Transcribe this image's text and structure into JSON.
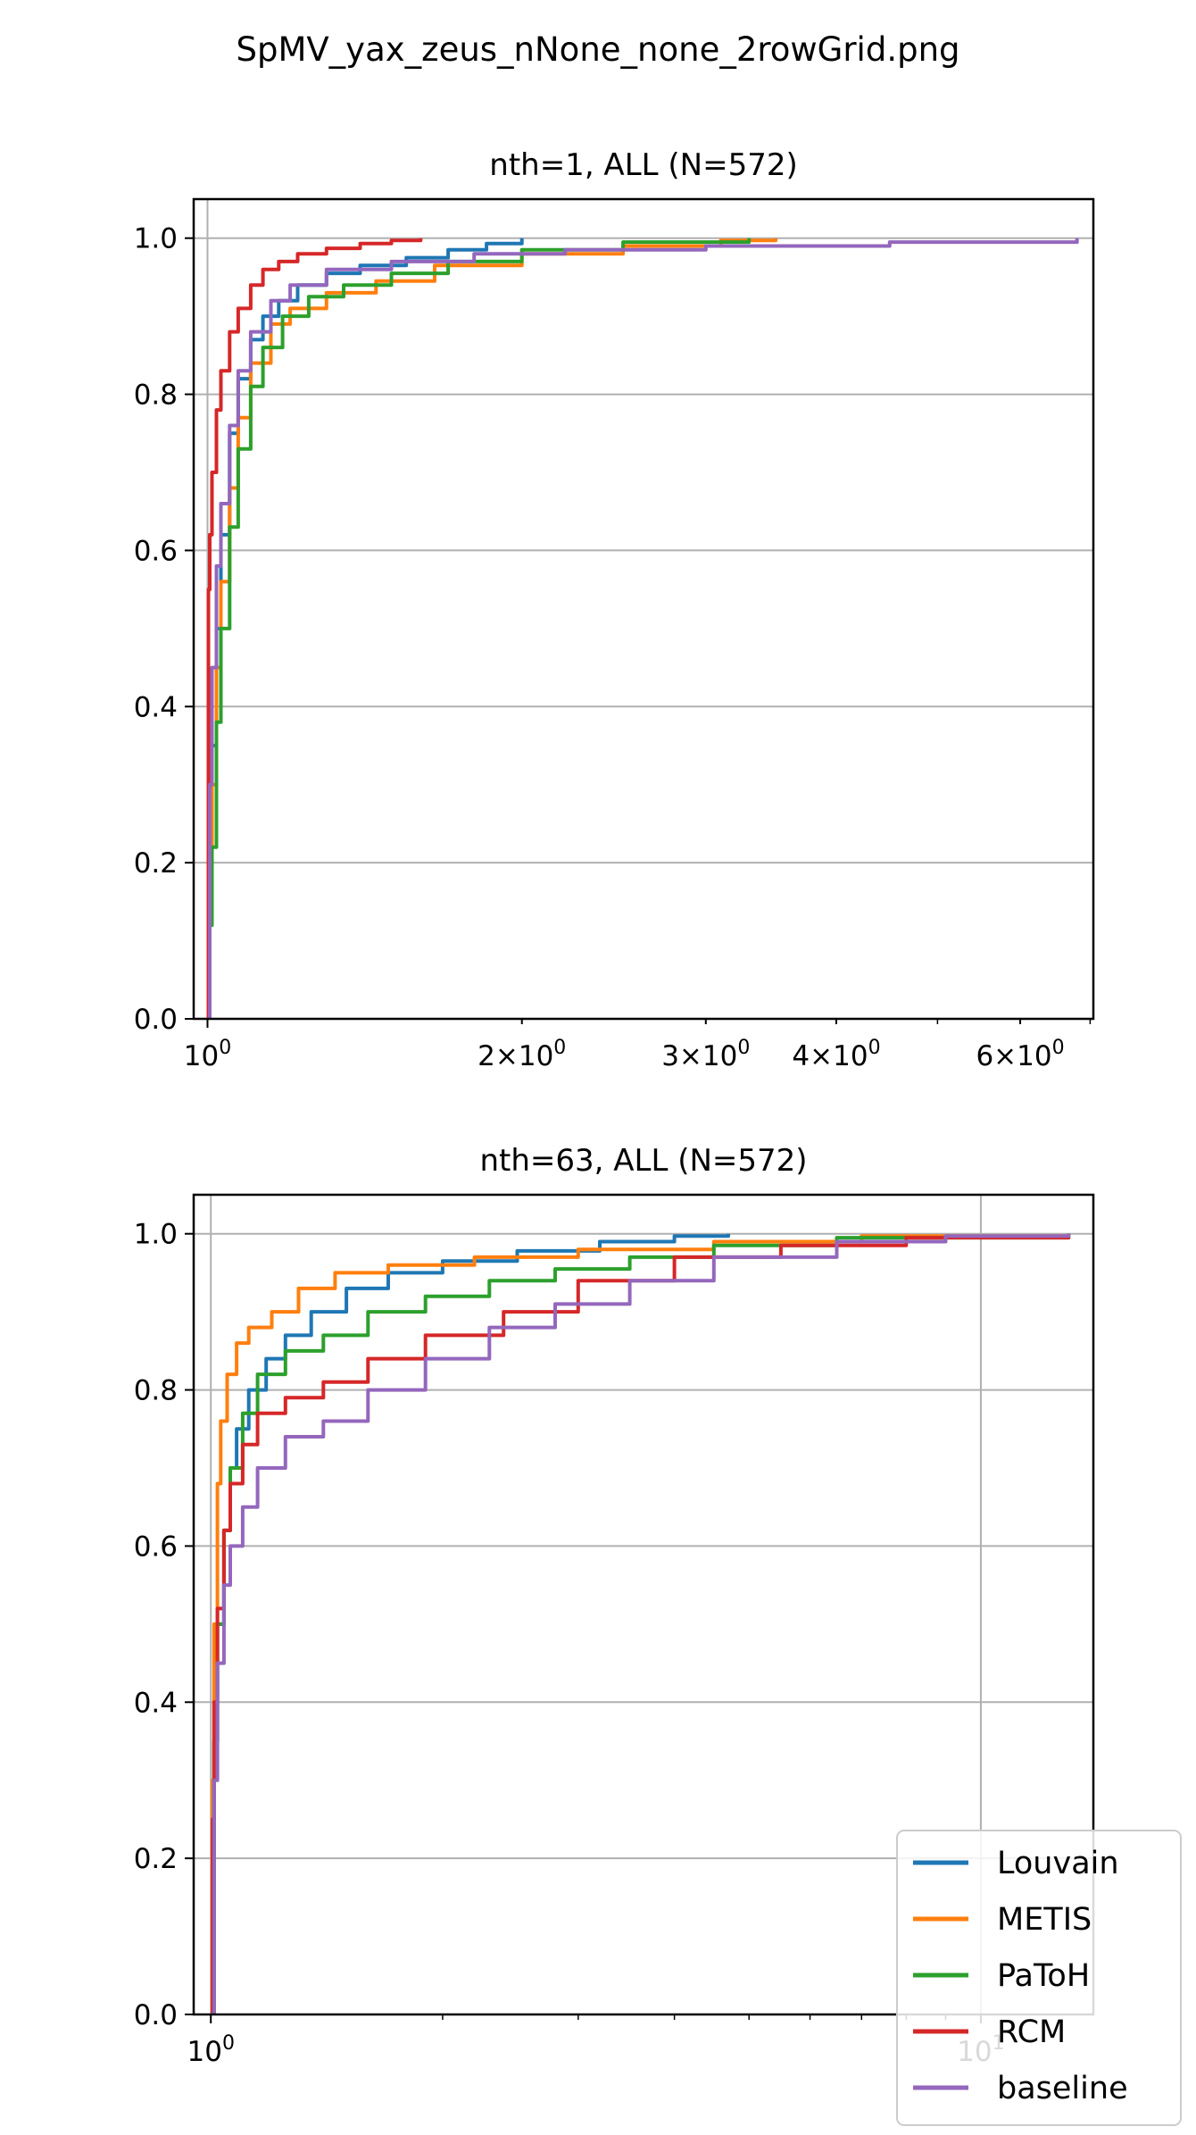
{
  "figure": {
    "suptitle": "SpMV_yax_zeus_nNone_none_2rowGrid.png"
  },
  "legend": {
    "entries": [
      "Louvain",
      "METIS",
      "PaToH",
      "RCM",
      "baseline"
    ],
    "placement": "lower-right"
  },
  "colors": {
    "Louvain": "#1f77b4",
    "METIS": "#ff7f0e",
    "PaToH": "#2ca02c",
    "RCM": "#d62728",
    "baseline": "#9467bd"
  },
  "chart_data": [
    {
      "type": "line",
      "title": "nth=1, ALL (N=572)",
      "xlabel": "",
      "ylabel": "",
      "xscale": "log",
      "xlim": [
        0.97,
        7.05
      ],
      "ylim": [
        -0.0,
        1.05
      ],
      "grid": true,
      "xticks": [
        1,
        2,
        3,
        4,
        6
      ],
      "xtick_labels": [
        {
          "base": "10",
          "exp": "0"
        },
        {
          "pre": "2",
          "base": "10",
          "exp": "0"
        },
        {
          "pre": "3",
          "base": "10",
          "exp": "0"
        },
        {
          "pre": "4",
          "base": "10",
          "exp": "0"
        },
        {
          "pre": "6",
          "base": "10",
          "exp": "0"
        }
      ],
      "yticks": [
        "0.0",
        "0.2",
        "0.4",
        "0.6",
        "0.8",
        "1.0"
      ],
      "series": [
        {
          "name": "Louvain",
          "x": [
            1.0,
            1.005,
            1.01,
            1.02,
            1.03,
            1.05,
            1.07,
            1.1,
            1.13,
            1.17,
            1.22,
            1.3,
            1.4,
            1.55,
            1.7,
            1.85,
            2.0
          ],
          "y": [
            0.0,
            0.2,
            0.35,
            0.5,
            0.62,
            0.75,
            0.82,
            0.87,
            0.9,
            0.92,
            0.94,
            0.955,
            0.965,
            0.975,
            0.985,
            0.993,
            1.0
          ]
        },
        {
          "name": "METIS",
          "x": [
            1.0,
            1.005,
            1.01,
            1.02,
            1.03,
            1.05,
            1.07,
            1.1,
            1.15,
            1.2,
            1.3,
            1.45,
            1.65,
            2.0,
            2.5,
            3.1,
            3.5
          ],
          "y": [
            0.0,
            0.18,
            0.3,
            0.45,
            0.56,
            0.68,
            0.77,
            0.84,
            0.89,
            0.91,
            0.93,
            0.945,
            0.965,
            0.98,
            0.99,
            0.997,
            1.0
          ]
        },
        {
          "name": "PaToH",
          "x": [
            1.0,
            1.005,
            1.01,
            1.02,
            1.03,
            1.05,
            1.07,
            1.1,
            1.13,
            1.18,
            1.25,
            1.35,
            1.5,
            1.7,
            2.0,
            2.5,
            3.3
          ],
          "y": [
            0.0,
            0.12,
            0.22,
            0.38,
            0.5,
            0.63,
            0.73,
            0.81,
            0.86,
            0.9,
            0.925,
            0.94,
            0.955,
            0.97,
            0.985,
            0.995,
            1.0
          ]
        },
        {
          "name": "RCM",
          "x": [
            1.0,
            1.002,
            1.005,
            1.01,
            1.02,
            1.03,
            1.05,
            1.07,
            1.1,
            1.13,
            1.17,
            1.22,
            1.3,
            1.4,
            1.5,
            1.6
          ],
          "y": [
            0.0,
            0.55,
            0.62,
            0.7,
            0.78,
            0.83,
            0.88,
            0.91,
            0.94,
            0.96,
            0.97,
            0.98,
            0.987,
            0.993,
            0.997,
            1.0
          ]
        },
        {
          "name": "baseline",
          "x": [
            1.0,
            1.005,
            1.01,
            1.02,
            1.03,
            1.05,
            1.07,
            1.1,
            1.15,
            1.2,
            1.3,
            1.5,
            1.8,
            2.2,
            3.0,
            4.5,
            6.8
          ],
          "y": [
            0.0,
            0.3,
            0.45,
            0.58,
            0.66,
            0.76,
            0.83,
            0.88,
            0.92,
            0.94,
            0.96,
            0.97,
            0.98,
            0.985,
            0.99,
            0.995,
            1.0
          ]
        }
      ]
    },
    {
      "type": "line",
      "title": "nth=63, ALL (N=572)",
      "xlabel": "",
      "ylabel": "",
      "xscale": "log",
      "xlim": [
        0.95,
        14.0
      ],
      "ylim": [
        -0.0,
        1.05
      ],
      "grid": true,
      "xticks": [
        1,
        10
      ],
      "xtick_labels": [
        {
          "base": "10",
          "exp": "0"
        },
        {
          "base": "10",
          "exp": "1"
        }
      ],
      "yticks": [
        "0.0",
        "0.2",
        "0.4",
        "0.6",
        "0.8",
        "1.0"
      ],
      "series": [
        {
          "name": "Louvain",
          "x": [
            1.0,
            1.01,
            1.02,
            1.04,
            1.06,
            1.08,
            1.12,
            1.18,
            1.25,
            1.35,
            1.5,
            1.7,
            2.0,
            2.5,
            3.2,
            4.0,
            4.7
          ],
          "y": [
            0.0,
            0.35,
            0.5,
            0.62,
            0.7,
            0.75,
            0.8,
            0.84,
            0.87,
            0.9,
            0.93,
            0.95,
            0.965,
            0.978,
            0.99,
            0.997,
            1.0
          ]
        },
        {
          "name": "METIS",
          "x": [
            1.0,
            1.005,
            1.01,
            1.02,
            1.03,
            1.05,
            1.08,
            1.12,
            1.2,
            1.3,
            1.45,
            1.7,
            2.2,
            3.0,
            4.5,
            7.0,
            13.0
          ],
          "y": [
            0.0,
            0.3,
            0.5,
            0.68,
            0.76,
            0.82,
            0.86,
            0.88,
            0.9,
            0.93,
            0.95,
            0.96,
            0.97,
            0.98,
            0.99,
            0.997,
            1.0
          ]
        },
        {
          "name": "PaToH",
          "x": [
            1.0,
            1.01,
            1.02,
            1.04,
            1.06,
            1.1,
            1.15,
            1.25,
            1.4,
            1.6,
            1.9,
            2.3,
            2.8,
            3.5,
            4.5,
            6.5,
            13.0
          ],
          "y": [
            0.0,
            0.35,
            0.5,
            0.62,
            0.7,
            0.77,
            0.82,
            0.85,
            0.87,
            0.9,
            0.92,
            0.94,
            0.955,
            0.97,
            0.985,
            0.995,
            1.0
          ]
        },
        {
          "name": "RCM",
          "x": [
            1.0,
            1.005,
            1.01,
            1.02,
            1.04,
            1.06,
            1.1,
            1.15,
            1.25,
            1.4,
            1.6,
            1.9,
            2.4,
            3.0,
            4.0,
            5.5,
            8.0,
            13.0
          ],
          "y": [
            0.0,
            0.25,
            0.4,
            0.52,
            0.62,
            0.68,
            0.73,
            0.77,
            0.79,
            0.81,
            0.84,
            0.87,
            0.9,
            0.94,
            0.97,
            0.985,
            0.995,
            1.0
          ]
        },
        {
          "name": "baseline",
          "x": [
            1.0,
            1.01,
            1.02,
            1.04,
            1.06,
            1.1,
            1.15,
            1.25,
            1.4,
            1.6,
            1.9,
            2.3,
            2.8,
            3.5,
            4.5,
            6.5,
            9.0,
            13.0
          ],
          "y": [
            0.0,
            0.3,
            0.45,
            0.55,
            0.6,
            0.65,
            0.7,
            0.74,
            0.76,
            0.8,
            0.84,
            0.88,
            0.91,
            0.94,
            0.97,
            0.99,
            0.997,
            1.0
          ]
        }
      ]
    }
  ]
}
